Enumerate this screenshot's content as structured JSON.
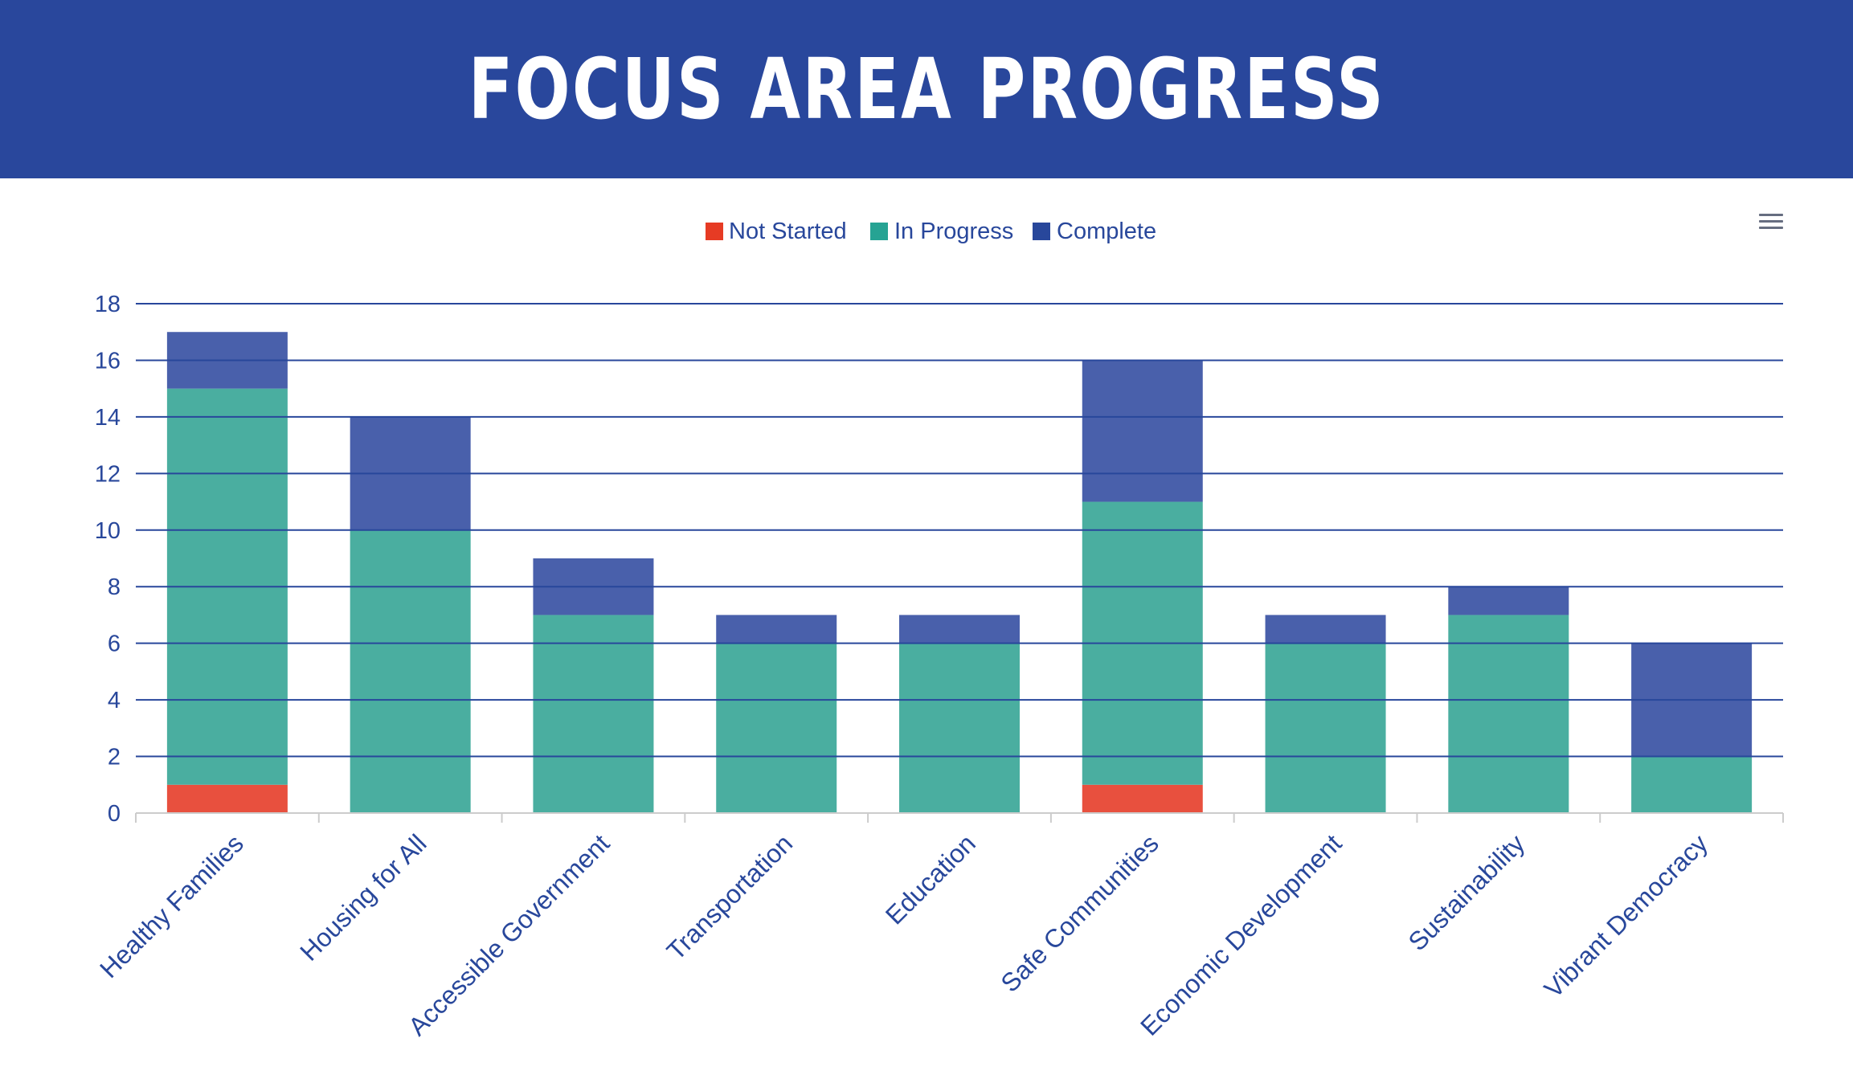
{
  "header": {
    "title": "FOCUS AREA PROGRESS"
  },
  "menu": {
    "icon": "hamburger-menu-icon"
  },
  "colors": {
    "header_bg": "#29479c",
    "not_started": "#e8503e",
    "in_progress": "#4aaea0",
    "complete": "#4960ab",
    "legend_not_started": "#e63b24",
    "legend_in_progress": "#26a393",
    "legend_complete": "#28479b",
    "text": "#28479b",
    "grid": "#28479b"
  },
  "chart_data": {
    "type": "bar",
    "stacked": true,
    "title": "FOCUS AREA PROGRESS",
    "categories": [
      "Healthy Families",
      "Housing for All",
      "Accessible Government",
      "Transportation",
      "Education",
      "Safe Communities",
      "Economic Development",
      "Sustainability",
      "Vibrant Democracy"
    ],
    "series": [
      {
        "name": "Not Started",
        "values": [
          1,
          0,
          0,
          0,
          0,
          1,
          0,
          0,
          0
        ]
      },
      {
        "name": "In Progress",
        "values": [
          14,
          10,
          7,
          6,
          6,
          10,
          6,
          7,
          2
        ]
      },
      {
        "name": "Complete",
        "values": [
          2,
          4,
          2,
          1,
          1,
          5,
          1,
          1,
          4
        ]
      }
    ],
    "yticks": [
      "0",
      "2",
      "4",
      "6",
      "8",
      "10",
      "12",
      "14",
      "16",
      "18"
    ],
    "ylim": [
      0,
      18
    ],
    "xlabel": "",
    "ylabel": "",
    "legend_position": "top-center",
    "grid": true
  }
}
